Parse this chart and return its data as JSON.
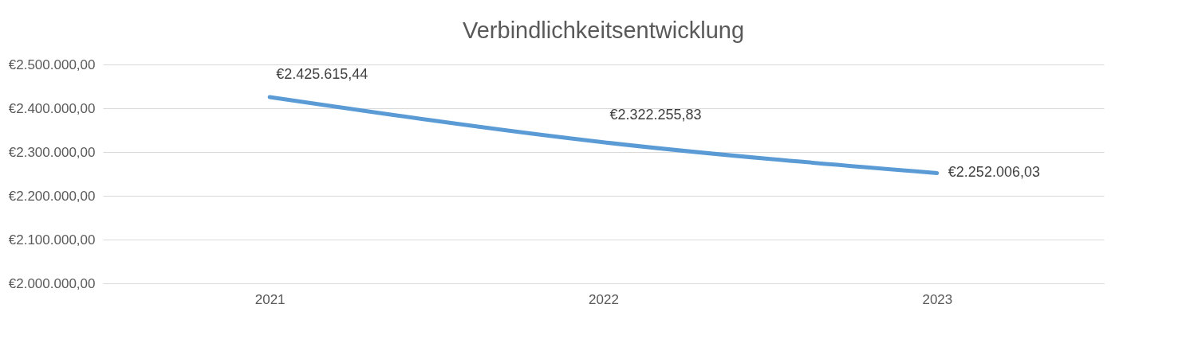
{
  "chart_data": {
    "type": "line",
    "title": "Verbindlichkeitsentwicklung",
    "categories": [
      "2021",
      "2022",
      "2023"
    ],
    "series": [
      {
        "color": "#5b9bd5",
        "values": [
          2425615.44,
          2322255.83,
          2252006.03
        ],
        "value_labels": [
          "€2.425.615,44",
          "€2.322.255,83",
          "€2.252.006,03"
        ]
      }
    ],
    "ylim": [
      2000000,
      2500000
    ],
    "yticks": [
      {
        "value": 2000000,
        "label": "€2.000.000,00"
      },
      {
        "value": 2100000,
        "label": "€2.100.000,00"
      },
      {
        "value": 2200000,
        "label": "€2.200.000,00"
      },
      {
        "value": 2300000,
        "label": "€2.300.000,00"
      },
      {
        "value": 2400000,
        "label": "€2.400.000,00"
      },
      {
        "value": 2500000,
        "label": "€2.500.000,00"
      }
    ],
    "grid": "y",
    "marker": "none",
    "line_style": "solid"
  }
}
